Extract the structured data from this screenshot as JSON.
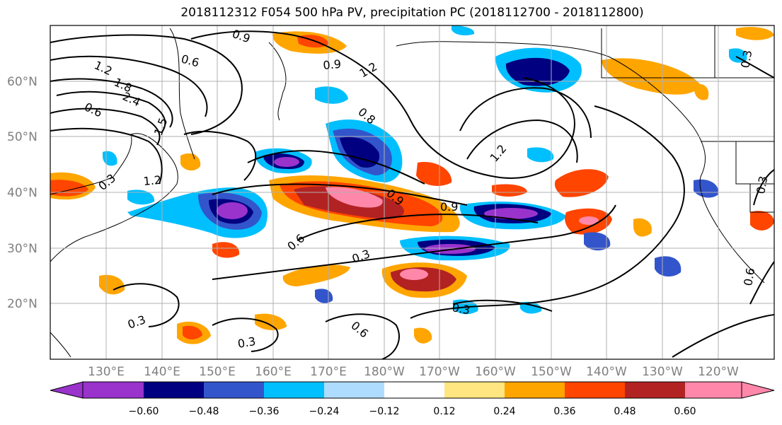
{
  "title": "2018112312 F054 500 hPa PV, precipitation PC (2018112700 - 2018112800)",
  "map": {
    "lat_labels": [
      "60°N",
      "50°N",
      "40°N",
      "30°N",
      "20°N"
    ],
    "lon_labels": [
      "130°E",
      "140°E",
      "150°E",
      "160°E",
      "170°E",
      "180°W",
      "170°W",
      "160°W",
      "150°W",
      "140°W",
      "130°W",
      "120°W"
    ],
    "pv_contour_labels": [
      "0.9",
      "0.6",
      "1.2",
      "1.8",
      "2.4",
      "1.5",
      "0.6",
      "0.3",
      "1.2",
      "0.9",
      "0.9",
      "0.8",
      "1.2",
      "1.2",
      "0.9",
      "0.6",
      "0.3",
      "0.3",
      "0.3",
      "0.6",
      "0.3",
      "0.6",
      "0.3",
      "0.3"
    ]
  },
  "colorbar": {
    "ticks": [
      "−0.60",
      "−0.48",
      "−0.36",
      "−0.24",
      "−0.12",
      "0.12",
      "0.24",
      "0.36",
      "0.48",
      "0.60"
    ],
    "colors": [
      "#9933cc",
      "#000080",
      "#3355cc",
      "#00bfff",
      "#aedcff",
      "#ffffff",
      "#ffe680",
      "#ffa500",
      "#ff4500",
      "#b22222",
      "#ff88aa",
      "#ff88aa"
    ]
  },
  "colors": {
    "purple": "#9933cc",
    "navy": "#000080",
    "blue": "#3355cc",
    "sky": "#00bfff",
    "lightblue": "#aedcff",
    "yellow": "#ffe680",
    "orange": "#ffa500",
    "redorange": "#ff4500",
    "darkred": "#b22222",
    "pink": "#ff88aa"
  }
}
